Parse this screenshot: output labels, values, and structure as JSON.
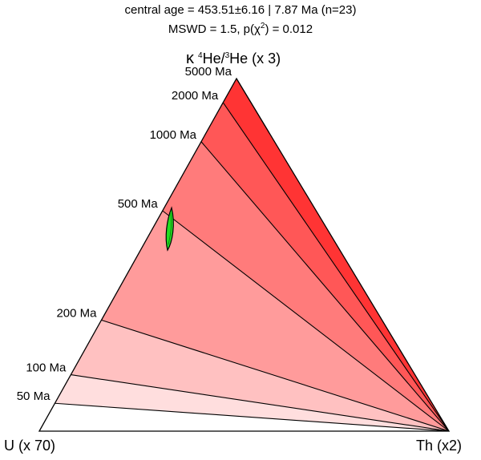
{
  "chart_data": {
    "type": "ternary",
    "title": {
      "line1": {
        "prefix": "central age = 453.51",
        "pm": "±",
        "rest": "6.16 | 7.87 Ma (n=23)"
      },
      "line2": {
        "prefix": "MSWD = 1.5, p(",
        "chi": "χ",
        "sup": "2",
        "rest": ") = 0.012"
      }
    },
    "apices": {
      "top": {
        "kappa": "κ",
        "sup1": "4",
        "mid": "He/",
        "sup2": "3",
        "rest": "He (x 3)"
      },
      "left": "U (x 70)",
      "right": "Th (x2)"
    },
    "isochron_ticks": [
      {
        "label": "50 Ma",
        "left_fraction": 0.079,
        "right_end_fraction": 0.0
      },
      {
        "label": "100 Ma",
        "left_fraction": 0.16,
        "right_end_fraction": 0.0
      },
      {
        "label": "200 Ma",
        "left_fraction": 0.315,
        "right_end_fraction": 0.0
      },
      {
        "label": "500 Ma",
        "left_fraction": 0.625,
        "right_end_fraction": 0.0
      },
      {
        "label": "1000 Ma",
        "left_fraction": 0.821,
        "right_end_fraction": 0.0
      },
      {
        "label": "2000 Ma",
        "left_fraction": 0.932,
        "right_end_fraction": 0.0
      },
      {
        "label": "5000 Ma",
        "left_fraction": 1.0,
        "right_end_fraction": 0.847
      }
    ],
    "band_colors": [
      "#ffffff",
      "#ffdede",
      "#ffc1c1",
      "#ff9b9b",
      "#ff7b7b",
      "#ff5757",
      "#ff3434",
      "#ff0000"
    ],
    "ellipse": {
      "fill": "#22dd22",
      "stroke": "#000000",
      "center_fraction": {
        "along_left": 0.595,
        "toward_right": 0.42
      }
    }
  }
}
